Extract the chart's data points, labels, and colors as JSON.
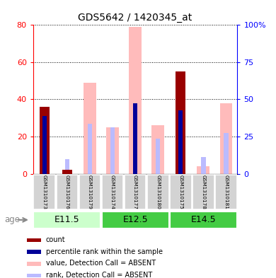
{
  "title": "GDS5642 / 1420345_at",
  "samples": [
    "GSM1310173",
    "GSM1310176",
    "GSM1310179",
    "GSM1310174",
    "GSM1310177",
    "GSM1310180",
    "GSM1310175",
    "GSM1310178",
    "GSM1310181"
  ],
  "count_values": [
    36,
    2,
    0,
    0,
    0,
    0,
    55,
    0,
    0
  ],
  "percentile_values": [
    31,
    0,
    0,
    0,
    38,
    0,
    34,
    0,
    0
  ],
  "absent_value": [
    0,
    0,
    49,
    25,
    79,
    26,
    0,
    4,
    38
  ],
  "absent_rank": [
    0,
    8,
    27,
    25,
    38,
    19,
    0,
    9,
    22
  ],
  "left_ylim": [
    0,
    80
  ],
  "right_ylim": [
    0,
    100
  ],
  "left_yticks": [
    0,
    20,
    40,
    60,
    80
  ],
  "right_yticks": [
    0,
    25,
    50,
    75,
    100
  ],
  "right_yticklabels": [
    "0",
    "25",
    "50",
    "75",
    "100%"
  ],
  "bar_color_count": "#990000",
  "bar_color_percentile": "#000099",
  "bar_color_absent_value": "#ffbbbb",
  "bar_color_absent_rank": "#bbbbff",
  "group_info": [
    {
      "label": "E11.5",
      "start": 0,
      "end": 2,
      "color": "#ccffcc"
    },
    {
      "label": "E12.5",
      "start": 3,
      "end": 5,
      "color": "#44cc44"
    },
    {
      "label": "E14.5",
      "start": 6,
      "end": 8,
      "color": "#44cc44"
    }
  ],
  "legend": [
    {
      "label": "count",
      "color": "#990000"
    },
    {
      "label": "percentile rank within the sample",
      "color": "#000099"
    },
    {
      "label": "value, Detection Call = ABSENT",
      "color": "#ffbbbb"
    },
    {
      "label": "rank, Detection Call = ABSENT",
      "color": "#bbbbff"
    }
  ],
  "figsize": [
    3.9,
    3.93
  ],
  "dpi": 100
}
